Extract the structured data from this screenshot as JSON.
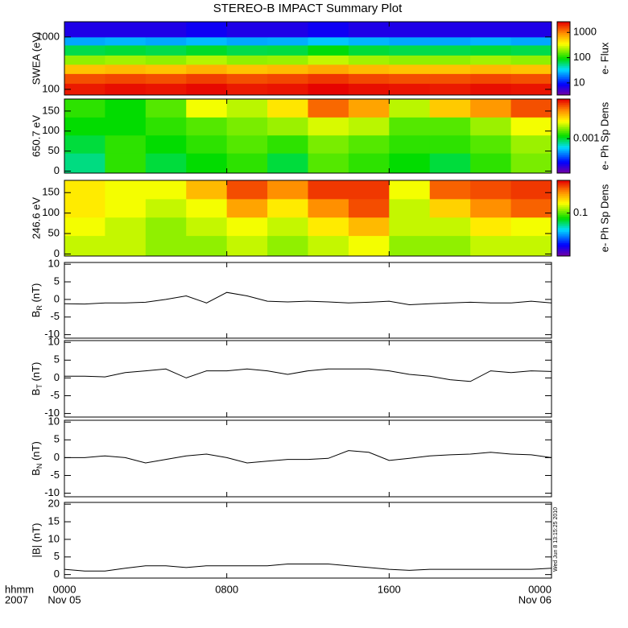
{
  "title": "STEREO-B IMPACT Summary Plot",
  "timestamp": "Wed Jun  8 13:15:25 2010",
  "x_axis": {
    "xlim": [
      0,
      24
    ],
    "xticks": [
      {
        "value": 0,
        "label": "0000"
      },
      {
        "value": 8,
        "label": "0800"
      },
      {
        "value": 16,
        "label": "1600"
      },
      {
        "value": 24,
        "label": "0000"
      }
    ],
    "dates": [
      "Nov 05",
      "Nov 06"
    ],
    "left_labels": [
      "hhmm",
      "2007"
    ]
  },
  "chart_data": [
    {
      "type": "heatmap",
      "ylabel": "SWEA (eV)",
      "ylog": true,
      "ylim": [
        78,
        1950
      ],
      "yticks": [
        100,
        1000
      ],
      "x": [
        0,
        2,
        4,
        6,
        8,
        10,
        12,
        14,
        16,
        18,
        20,
        22,
        24
      ],
      "y": [
        78,
        130,
        200,
        300,
        450,
        700,
        1000,
        1950
      ],
      "clog": true,
      "clim": [
        3.3,
        2650
      ],
      "cticks": [
        10,
        100,
        1000
      ],
      "colorbar_label": "e- Flux",
      "values": [
        [
          2200,
          2400,
          2300,
          2500,
          2200,
          2300,
          2600,
          2400,
          2300,
          2200,
          2400,
          2300
        ],
        [
          1500,
          1600,
          1500,
          1700,
          1500,
          1600,
          1800,
          1600,
          1500,
          1500,
          1600,
          1500
        ],
        [
          600,
          650,
          600,
          700,
          600,
          650,
          750,
          650,
          600,
          600,
          650,
          600
        ],
        [
          200,
          220,
          200,
          240,
          200,
          210,
          260,
          220,
          200,
          200,
          220,
          200
        ],
        [
          70,
          75,
          70,
          80,
          70,
          72,
          90,
          75,
          70,
          70,
          75,
          70
        ],
        [
          25,
          27,
          25,
          28,
          25,
          26,
          30,
          27,
          25,
          25,
          27,
          25
        ],
        [
          7,
          7,
          7,
          8,
          7,
          7,
          8,
          7,
          7,
          7,
          7,
          7
        ]
      ]
    },
    {
      "type": "heatmap",
      "ylabel": "650.7 eV",
      "ylog": false,
      "ylim": [
        -5,
        180
      ],
      "yticks": [
        0,
        50,
        100,
        150
      ],
      "x": [
        0,
        2,
        4,
        6,
        8,
        10,
        12,
        14,
        16,
        18,
        20,
        22,
        24
      ],
      "y": [
        -5,
        45,
        90,
        135,
        180
      ],
      "clog": true,
      "clim": [
        0.0003,
        0.004
      ],
      "cticks": [
        0.001
      ],
      "colorbar_label": "e- Ph Sp Dens",
      "values": [
        [
          0.0009,
          0.0012,
          0.001,
          0.0011,
          0.0012,
          0.001,
          0.0013,
          0.0012,
          0.0011,
          0.001,
          0.0012,
          0.0014
        ],
        [
          0.001,
          0.0012,
          0.0011,
          0.0012,
          0.0013,
          0.0012,
          0.0014,
          0.0013,
          0.0012,
          0.0012,
          0.0013,
          0.0015
        ],
        [
          0.0011,
          0.0011,
          0.0012,
          0.0013,
          0.0014,
          0.0015,
          0.0017,
          0.0016,
          0.0013,
          0.0013,
          0.0015,
          0.0018
        ],
        [
          0.0012,
          0.0011,
          0.0013,
          0.0018,
          0.0016,
          0.002,
          0.003,
          0.0025,
          0.0016,
          0.0022,
          0.0026,
          0.0032
        ]
      ]
    },
    {
      "type": "heatmap",
      "ylabel": "246.6 eV",
      "ylog": false,
      "ylim": [
        -5,
        180
      ],
      "yticks": [
        0,
        50,
        100,
        150
      ],
      "x": [
        0,
        2,
        4,
        6,
        8,
        10,
        12,
        14,
        16,
        18,
        20,
        22,
        24
      ],
      "y": [
        -5,
        45,
        90,
        135,
        180
      ],
      "clog": true,
      "clim": [
        0.03,
        0.25
      ],
      "cticks": [
        0.1
      ],
      "colorbar_label": "e- Ph Sp Dens",
      "values": [
        [
          0.12,
          0.12,
          0.11,
          0.11,
          0.12,
          0.11,
          0.12,
          0.13,
          0.11,
          0.11,
          0.12,
          0.12
        ],
        [
          0.13,
          0.12,
          0.11,
          0.12,
          0.13,
          0.12,
          0.14,
          0.16,
          0.12,
          0.12,
          0.14,
          0.13
        ],
        [
          0.14,
          0.13,
          0.12,
          0.13,
          0.17,
          0.14,
          0.18,
          0.21,
          0.12,
          0.15,
          0.18,
          0.2
        ],
        [
          0.14,
          0.13,
          0.13,
          0.16,
          0.21,
          0.18,
          0.22,
          0.22,
          0.13,
          0.2,
          0.21,
          0.22
        ]
      ]
    },
    {
      "type": "line",
      "ylabel": "B",
      "ylabel_sub": "R",
      "ylabel_unit": " (nT)",
      "ylim": [
        -11,
        10.5
      ],
      "yticks": [
        -10,
        -5,
        0,
        5,
        10
      ],
      "color": "#000000",
      "x": [
        0,
        1,
        2,
        3,
        4,
        5,
        6,
        7,
        8,
        9,
        10,
        11,
        12,
        13,
        14,
        15,
        16,
        17,
        18,
        19,
        20,
        21,
        22,
        23,
        24
      ],
      "values": [
        -1.2,
        -1.3,
        -1,
        -1,
        -0.8,
        0,
        1,
        -1,
        2,
        1,
        -0.5,
        -0.7,
        -0.5,
        -0.7,
        -1,
        -0.8,
        -0.5,
        -1.5,
        -1.2,
        -1,
        -0.8,
        -1,
        -1,
        -0.5,
        -1
      ]
    },
    {
      "type": "line",
      "ylabel": "B",
      "ylabel_sub": "T",
      "ylabel_unit": " (nT)",
      "ylim": [
        -11,
        10.5
      ],
      "yticks": [
        -10,
        -5,
        0,
        5,
        10
      ],
      "color": "#000000",
      "x": [
        0,
        1,
        2,
        3,
        4,
        5,
        6,
        7,
        8,
        9,
        10,
        11,
        12,
        13,
        14,
        15,
        16,
        17,
        18,
        19,
        20,
        21,
        22,
        23,
        24
      ],
      "values": [
        0.5,
        0.5,
        0.3,
        1.5,
        2,
        2.5,
        0,
        2,
        2,
        2.5,
        2,
        1,
        2,
        2.5,
        2.5,
        2.5,
        2,
        1,
        0.5,
        -0.5,
        -1,
        2,
        1.5,
        2,
        1.8
      ]
    },
    {
      "type": "line",
      "ylabel": "B",
      "ylabel_sub": "N",
      "ylabel_unit": " (nT)",
      "ylim": [
        -11,
        10.5
      ],
      "yticks": [
        -10,
        -5,
        0,
        5,
        10
      ],
      "color": "#000000",
      "x": [
        0,
        1,
        2,
        3,
        4,
        5,
        6,
        7,
        8,
        9,
        10,
        11,
        12,
        13,
        14,
        15,
        16,
        17,
        18,
        19,
        20,
        21,
        22,
        23,
        24
      ],
      "values": [
        0,
        0,
        0.5,
        0,
        -1.5,
        -0.5,
        0.5,
        1,
        0,
        -1.5,
        -1,
        -0.5,
        -0.5,
        -0.2,
        2,
        1.5,
        -0.8,
        -0.2,
        0.5,
        0.8,
        1,
        1.5,
        1,
        0.8,
        0
      ]
    },
    {
      "type": "line",
      "ylabel": "|B| (nT)",
      "ylim": [
        -1,
        20.5
      ],
      "yticks": [
        0,
        5,
        10,
        15,
        20
      ],
      "color": "#000000",
      "x": [
        0,
        1,
        2,
        3,
        4,
        5,
        6,
        7,
        8,
        9,
        10,
        11,
        12,
        13,
        14,
        15,
        16,
        17,
        18,
        19,
        20,
        21,
        22,
        23,
        24
      ],
      "values": [
        1.5,
        1,
        1,
        1.8,
        2.5,
        2.5,
        2,
        2.5,
        2.5,
        2.5,
        2.5,
        3,
        3,
        3,
        2.5,
        2,
        1.5,
        1.2,
        1.5,
        1.5,
        1.5,
        1.5,
        1.5,
        1.5,
        1.8
      ]
    }
  ]
}
